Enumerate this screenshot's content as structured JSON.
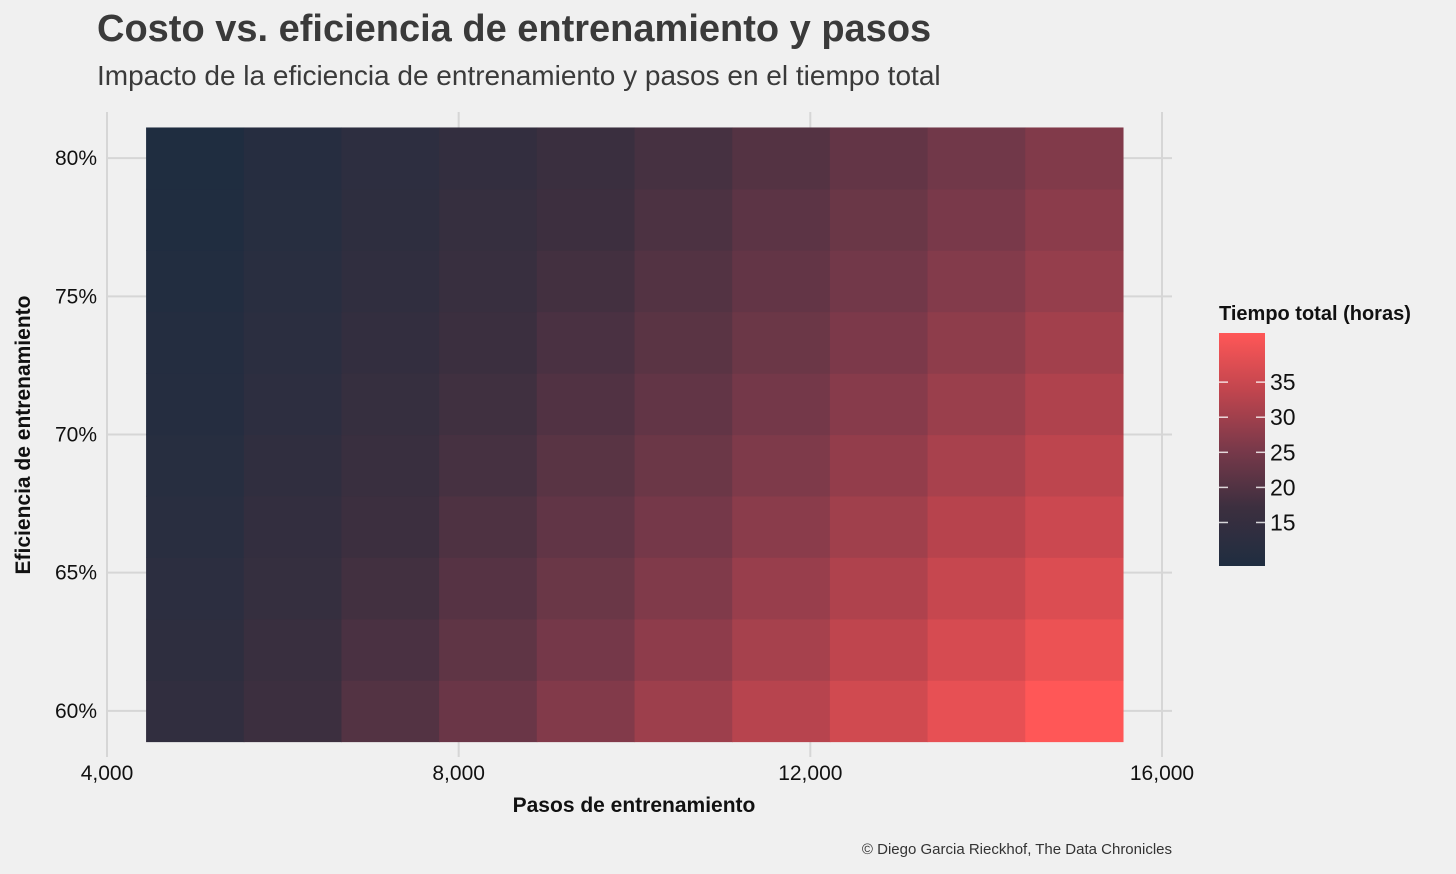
{
  "title": "Costo vs. eficiencia de entrenamiento y pasos",
  "subtitle": "Impacto de la eficiencia de entrenamiento y pasos en el tiempo total",
  "caption": "© Diego Garcia Rieckhof, The Data Chronicles",
  "chart_data": {
    "type": "heatmap",
    "xlabel": "Pasos de entrenamiento",
    "ylabel": "Eficiencia de entrenamiento",
    "x": [
      5000,
      6111,
      7222,
      8333,
      9444,
      10556,
      11667,
      12778,
      13889,
      15000
    ],
    "y": [
      0.6,
      0.6222,
      0.6444,
      0.6667,
      0.6889,
      0.7111,
      0.7333,
      0.7556,
      0.7778,
      0.8
    ],
    "xlim": [
      4000,
      16000
    ],
    "ylim": [
      0.5833,
      0.8167
    ],
    "xticks": [
      4000,
      8000,
      12000,
      16000
    ],
    "xtick_labels": [
      "4,000",
      "8,000",
      "12,000",
      "16,000"
    ],
    "yticks": [
      0.6,
      0.65,
      0.7,
      0.75,
      0.8
    ],
    "ytick_labels": [
      "60%",
      "65%",
      "70%",
      "75%",
      "80%"
    ],
    "values_formula": "z = 14 * x / (5000 * (1.4 * y - 0.28))",
    "values": [
      [
        14.0,
        17.1,
        20.2,
        23.3,
        26.4,
        29.6,
        32.7,
        35.8,
        38.9,
        42.0
      ],
      [
        13.2,
        16.1,
        19.0,
        21.9,
        24.9,
        27.8,
        30.7,
        33.6,
        36.6,
        39.5
      ],
      [
        12.4,
        15.2,
        17.9,
        20.7,
        23.4,
        26.2,
        29.0,
        31.7,
        34.5,
        37.3
      ],
      [
        11.8,
        14.4,
        17.0,
        19.6,
        22.2,
        24.8,
        27.4,
        30.0,
        32.6,
        35.2
      ],
      [
        11.1,
        13.6,
        16.1,
        18.5,
        21.0,
        23.5,
        26.0,
        28.4,
        30.9,
        33.4
      ],
      [
        10.6,
        12.9,
        15.3,
        17.6,
        20.0,
        22.3,
        24.7,
        27.0,
        29.3,
        31.7
      ],
      [
        10.1,
        12.3,
        14.5,
        16.8,
        19.0,
        21.2,
        23.5,
        25.7,
        27.9,
        30.2
      ],
      [
        9.6,
        11.7,
        13.8,
        16.0,
        18.1,
        20.2,
        22.4,
        24.5,
        26.6,
        28.7
      ],
      [
        9.2,
        11.2,
        13.2,
        15.3,
        17.3,
        19.3,
        21.4,
        23.4,
        25.4,
        27.5
      ],
      [
        8.8,
        10.7,
        12.7,
        14.6,
        16.6,
        18.5,
        20.4,
        22.4,
        24.3,
        26.3
      ]
    ],
    "legend": {
      "title": "Tiempo total (horas)",
      "ticks": [
        15,
        20,
        25,
        30,
        35
      ],
      "range": [
        8.8,
        42.0
      ],
      "colors": [
        "#1f2d40",
        "#3c2f3f",
        "#79394a",
        "#c0454e",
        "#ff5757"
      ],
      "placement": "right"
    },
    "grid": true
  }
}
